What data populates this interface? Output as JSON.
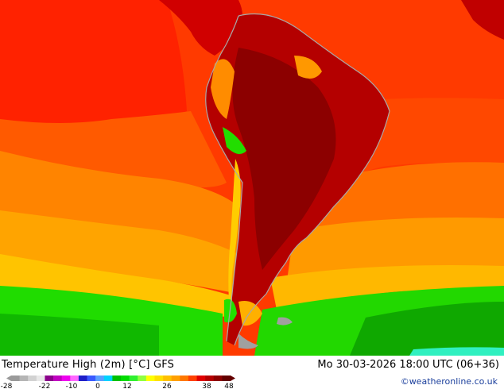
{
  "title": "Temperature High (2m) [°C] GFS",
  "valid_time": "Mo 30-03-2026 18:00 UTC (06+36)",
  "credit": "©weatheronline.co.uk",
  "legend": {
    "ticks": [
      "-28",
      "-22",
      "-10",
      "0",
      "12",
      "26",
      "38",
      "48"
    ],
    "colors": [
      "#9a9a9a",
      "#b5b5b5",
      "#d2d2d2",
      "#e8e8e8",
      "#8b008b",
      "#c000c0",
      "#ee00ee",
      "#ff66ff",
      "#1e1ec8",
      "#3a5aff",
      "#5aa0ff",
      "#00d2ff",
      "#00c000",
      "#00dc00",
      "#30f030",
      "#90ff40",
      "#ffff00",
      "#ffe000",
      "#ffc000",
      "#ffa000",
      "#ff7800",
      "#ff4000",
      "#e00000",
      "#b40000",
      "#8c0000",
      "#640000"
    ]
  },
  "palette": {
    "ocean_hot": "#ff3000",
    "ocean_warm": "#ff7a00",
    "ocean_mild": "#ffa800",
    "ocean_cool": "#ffc200",
    "cold_green": "#22e000",
    "land_hot": "#b20000",
    "land_hottest": "#8c0000",
    "coast_line": "#b0b0b0"
  }
}
